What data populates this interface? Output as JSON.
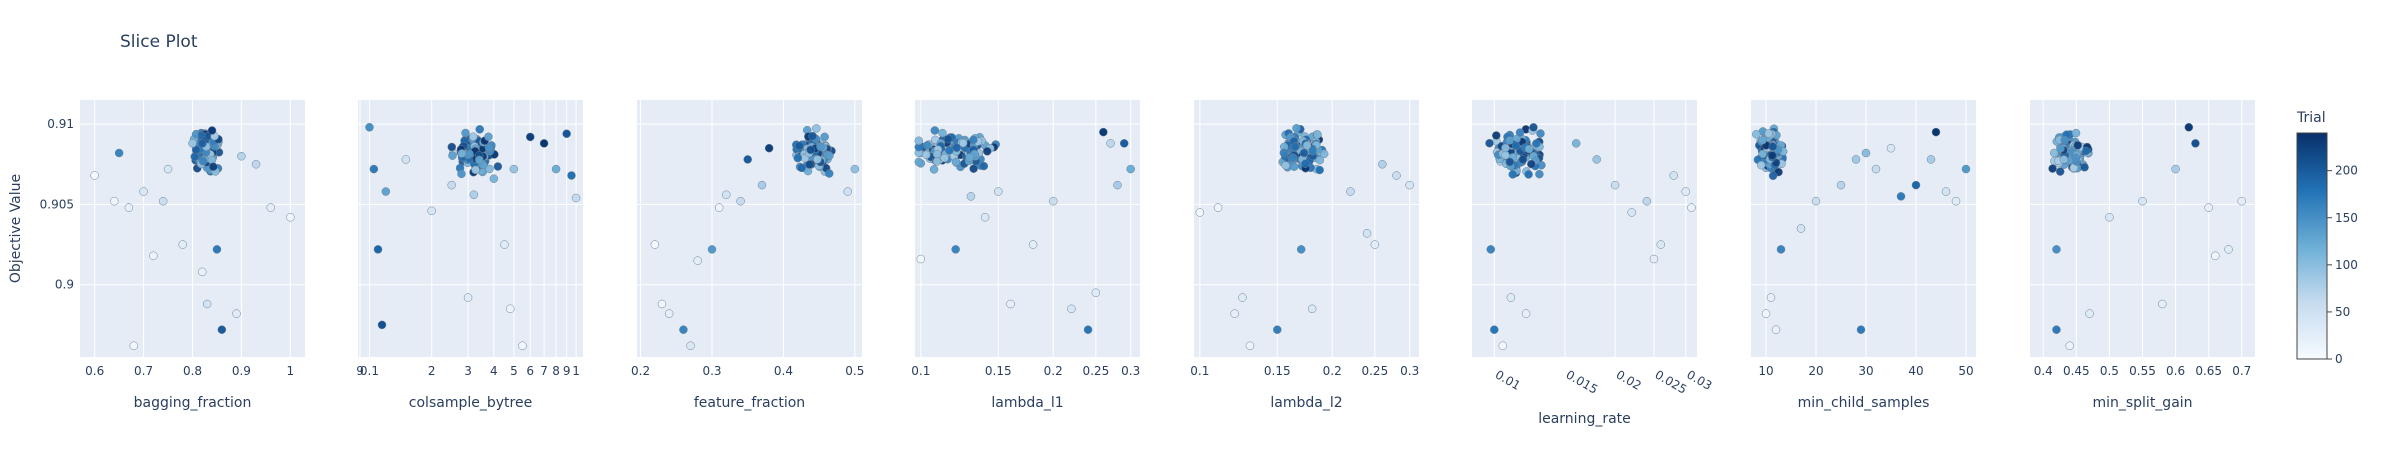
{
  "chart_data": {
    "type": "scatter",
    "title": "Slice Plot",
    "ylabel": "Objective Value",
    "ylim": [
      0.8955,
      0.9115
    ],
    "y_ticks": [
      0.9,
      0.905,
      0.91
    ],
    "y_tick_labels": [
      "0.9",
      "0.905",
      "0.91"
    ],
    "colorbar": {
      "title": "Trial",
      "range": [
        0,
        240
      ],
      "ticks": [
        0,
        50,
        100,
        150,
        200
      ],
      "tick_labels": [
        "0",
        "50",
        "100",
        "150",
        "200"
      ],
      "colors": [
        "#f7fbff",
        "#c6dbef",
        "#6baed6",
        "#2171b5",
        "#08306b"
      ]
    },
    "grid": true,
    "panels": [
      {
        "xlabel": "bagging_fraction",
        "scale": "linear",
        "xlim": [
          0.57,
          1.03
        ],
        "x_ticks": [
          0.6,
          0.7,
          0.8,
          0.9,
          1
        ],
        "x_tick_labels": [
          "0.6",
          "0.7",
          "0.8",
          "0.9",
          "1"
        ],
        "tick_rotate": false,
        "cluster": {
          "c": 0.83,
          "s": 0.035
        },
        "points": [
          [
            0.6,
            0.9068,
            3
          ],
          [
            0.64,
            0.9052,
            12
          ],
          [
            0.65,
            0.9082,
            160
          ],
          [
            0.67,
            0.9048,
            20
          ],
          [
            0.68,
            0.8962,
            8
          ],
          [
            0.7,
            0.9058,
            35
          ],
          [
            0.72,
            0.9018,
            14
          ],
          [
            0.74,
            0.9052,
            55
          ],
          [
            0.75,
            0.9072,
            40
          ],
          [
            0.78,
            0.9025,
            26
          ],
          [
            0.8,
            0.9088,
            90
          ],
          [
            0.82,
            0.9008,
            18
          ],
          [
            0.83,
            0.8988,
            45
          ],
          [
            0.84,
            0.9096,
            230
          ],
          [
            0.85,
            0.9022,
            170
          ],
          [
            0.86,
            0.8972,
            200
          ],
          [
            0.89,
            0.8982,
            30
          ],
          [
            0.9,
            0.908,
            70
          ],
          [
            0.93,
            0.9075,
            65
          ],
          [
            0.96,
            0.9048,
            24
          ],
          [
            1,
            0.9042,
            10
          ]
        ]
      },
      {
        "xlabel": "colsample_bytree",
        "scale": "log",
        "xlim": [
          0.088,
          1.08
        ],
        "x_ticks": [
          0.09,
          0.1,
          0.2,
          0.3,
          0.4,
          0.5,
          0.6,
          0.7,
          0.8,
          0.9,
          1
        ],
        "x_tick_labels": [
          "9",
          "0.1",
          "2",
          "3",
          "4",
          "5",
          "6",
          "7",
          "8",
          "9",
          "1"
        ],
        "tick_rotate": false,
        "cluster": {
          "c": 0.33,
          "s": 0.12
        },
        "points": [
          [
            0.1,
            0.9098,
            150
          ],
          [
            0.105,
            0.9072,
            170
          ],
          [
            0.11,
            0.9022,
            190
          ],
          [
            0.115,
            0.8975,
            210
          ],
          [
            0.2,
            0.9046,
            40
          ],
          [
            0.25,
            0.9062,
            60
          ],
          [
            0.3,
            0.8992,
            28
          ],
          [
            0.32,
            0.9056,
            75
          ],
          [
            0.4,
            0.9066,
            110
          ],
          [
            0.45,
            0.9025,
            30
          ],
          [
            0.48,
            0.8985,
            15
          ],
          [
            0.5,
            0.9072,
            90
          ],
          [
            0.55,
            0.8962,
            10
          ],
          [
            0.6,
            0.9092,
            225
          ],
          [
            0.7,
            0.9088,
            235
          ],
          [
            0.8,
            0.9072,
            120
          ],
          [
            0.9,
            0.9094,
            205
          ],
          [
            0.95,
            0.9068,
            180
          ],
          [
            1,
            0.9054,
            60
          ],
          [
            0.15,
            0.9078,
            45
          ],
          [
            0.12,
            0.9058,
            130
          ]
        ]
      },
      {
        "xlabel": "feature_fraction",
        "scale": "linear",
        "xlim": [
          0.195,
          0.51
        ],
        "x_ticks": [
          0.2,
          0.3,
          0.4,
          0.5
        ],
        "x_tick_labels": [
          "0.2",
          "0.3",
          "0.4",
          "0.5"
        ],
        "tick_rotate": false,
        "cluster": {
          "c": 0.44,
          "s": 0.035
        },
        "points": [
          [
            0.22,
            0.9025,
            5
          ],
          [
            0.23,
            0.8988,
            10
          ],
          [
            0.24,
            0.8982,
            22
          ],
          [
            0.26,
            0.8972,
            160
          ],
          [
            0.27,
            0.8962,
            35
          ],
          [
            0.28,
            0.9015,
            25
          ],
          [
            0.3,
            0.9022,
            140
          ],
          [
            0.31,
            0.9048,
            12
          ],
          [
            0.32,
            0.9056,
            45
          ],
          [
            0.34,
            0.9052,
            60
          ],
          [
            0.35,
            0.9078,
            200
          ],
          [
            0.37,
            0.9062,
            80
          ],
          [
            0.38,
            0.9085,
            225
          ],
          [
            0.5,
            0.9072,
            95
          ],
          [
            0.49,
            0.9058,
            50
          ]
        ]
      },
      {
        "xlabel": "lambda_l1",
        "scale": "log",
        "xlim": [
          0.097,
          0.315
        ],
        "x_ticks": [
          0.1,
          0.15,
          0.2,
          0.25,
          0.3
        ],
        "x_tick_labels": [
          "0.1",
          "0.15",
          "0.2",
          "0.25",
          "0.3"
        ],
        "tick_rotate": false,
        "cluster": {
          "c": 0.115,
          "s": 0.045
        },
        "points": [
          [
            0.1,
            0.9016,
            8
          ],
          [
            0.12,
            0.9022,
            160
          ],
          [
            0.13,
            0.9055,
            70
          ],
          [
            0.14,
            0.9042,
            35
          ],
          [
            0.15,
            0.9058,
            45
          ],
          [
            0.16,
            0.8988,
            20
          ],
          [
            0.18,
            0.9025,
            25
          ],
          [
            0.2,
            0.9052,
            55
          ],
          [
            0.22,
            0.8985,
            40
          ],
          [
            0.24,
            0.8972,
            175
          ],
          [
            0.25,
            0.8995,
            30
          ],
          [
            0.27,
            0.9088,
            65
          ],
          [
            0.28,
            0.9062,
            80
          ],
          [
            0.29,
            0.9088,
            200
          ],
          [
            0.3,
            0.9072,
            120
          ],
          [
            0.26,
            0.9095,
            230
          ]
        ]
      },
      {
        "xlabel": "lambda_l2",
        "scale": "log",
        "xlim": [
          0.097,
          0.315
        ],
        "x_ticks": [
          0.1,
          0.15,
          0.2,
          0.25,
          0.3
        ],
        "x_tick_labels": [
          "0.1",
          "0.15",
          "0.2",
          "0.25",
          "0.3"
        ],
        "tick_rotate": false,
        "cluster": {
          "c": 0.17,
          "s": 0.03
        },
        "points": [
          [
            0.1,
            0.9045,
            5
          ],
          [
            0.11,
            0.9048,
            12
          ],
          [
            0.12,
            0.8982,
            20
          ],
          [
            0.125,
            0.8992,
            30
          ],
          [
            0.13,
            0.8962,
            15
          ],
          [
            0.15,
            0.8972,
            165
          ],
          [
            0.17,
            0.9022,
            150
          ],
          [
            0.18,
            0.8985,
            35
          ],
          [
            0.22,
            0.9058,
            60
          ],
          [
            0.24,
            0.9032,
            45
          ],
          [
            0.25,
            0.9025,
            28
          ],
          [
            0.26,
            0.9075,
            75
          ],
          [
            0.28,
            0.9068,
            55
          ],
          [
            0.3,
            0.9062,
            40
          ]
        ]
      },
      {
        "xlabel": "learning_rate",
        "scale": "log",
        "xlim": [
          0.0088,
          0.032
        ],
        "x_ticks": [
          0.01,
          0.015,
          0.02,
          0.025,
          0.03
        ],
        "x_tick_labels": [
          "0.01",
          "0.015",
          "0.02",
          "0.025",
          "0.03"
        ],
        "tick_rotate": true,
        "cluster": {
          "c": 0.0115,
          "s": 0.0025
        },
        "points": [
          [
            0.0098,
            0.9022,
            160
          ],
          [
            0.01,
            0.8972,
            175
          ],
          [
            0.011,
            0.8992,
            30
          ],
          [
            0.012,
            0.8982,
            20
          ],
          [
            0.0105,
            0.8962,
            10
          ],
          [
            0.016,
            0.9088,
            110
          ],
          [
            0.018,
            0.9078,
            90
          ],
          [
            0.02,
            0.9062,
            55
          ],
          [
            0.022,
            0.9045,
            40
          ],
          [
            0.024,
            0.9052,
            65
          ],
          [
            0.025,
            0.9016,
            25
          ],
          [
            0.026,
            0.9025,
            35
          ],
          [
            0.028,
            0.9068,
            45
          ],
          [
            0.03,
            0.9058,
            30
          ],
          [
            0.031,
            0.9048,
            18
          ]
        ]
      },
      {
        "xlabel": "min_child_samples",
        "scale": "linear",
        "xlim": [
          7,
          52
        ],
        "x_ticks": [
          10,
          20,
          30,
          40,
          50
        ],
        "x_tick_labels": [
          "10",
          "20",
          "30",
          "40",
          "50"
        ],
        "tick_rotate": false,
        "cluster": {
          "c": 11,
          "s": 3.5
        },
        "points": [
          [
            10,
            0.8982,
            10
          ],
          [
            11,
            0.8992,
            20
          ],
          [
            12,
            0.8972,
            18
          ],
          [
            13,
            0.9022,
            160
          ],
          [
            17,
            0.9035,
            45
          ],
          [
            20,
            0.9052,
            55
          ],
          [
            25,
            0.9062,
            70
          ],
          [
            28,
            0.9078,
            85
          ],
          [
            29,
            0.8972,
            170
          ],
          [
            30,
            0.9082,
            100
          ],
          [
            32,
            0.9072,
            60
          ],
          [
            35,
            0.9085,
            40
          ],
          [
            37,
            0.9055,
            170
          ],
          [
            40,
            0.9062,
            190
          ],
          [
            43,
            0.9078,
            80
          ],
          [
            44,
            0.9095,
            235
          ],
          [
            46,
            0.9058,
            45
          ],
          [
            48,
            0.9052,
            30
          ],
          [
            50,
            0.9072,
            140
          ]
        ]
      },
      {
        "xlabel": "min_split_gain",
        "scale": "linear",
        "xlim": [
          0.38,
          0.72
        ],
        "x_ticks": [
          0.4,
          0.45,
          0.5,
          0.55,
          0.6,
          0.65,
          0.7
        ],
        "x_tick_labels": [
          "0.4",
          "0.45",
          "0.5",
          "0.55",
          "0.6",
          "0.65",
          "0.7"
        ],
        "tick_rotate": false,
        "cluster": {
          "c": 0.44,
          "s": 0.035
        },
        "points": [
          [
            0.42,
            0.8972,
            170
          ],
          [
            0.42,
            0.9022,
            150
          ],
          [
            0.44,
            0.8962,
            15
          ],
          [
            0.47,
            0.8982,
            30
          ],
          [
            0.5,
            0.9042,
            35
          ],
          [
            0.55,
            0.9052,
            40
          ],
          [
            0.58,
            0.8988,
            25
          ],
          [
            0.6,
            0.9072,
            80
          ],
          [
            0.62,
            0.9098,
            230
          ],
          [
            0.63,
            0.9088,
            210
          ],
          [
            0.65,
            0.9048,
            20
          ],
          [
            0.66,
            0.9018,
            12
          ],
          [
            0.68,
            0.9022,
            30
          ],
          [
            0.7,
            0.9052,
            25
          ]
        ]
      }
    ]
  }
}
